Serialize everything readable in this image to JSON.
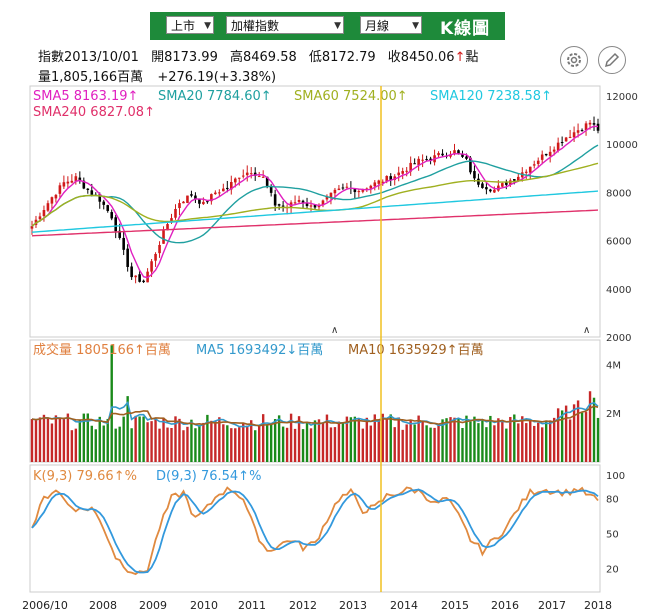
{
  "toolbar": {
    "market_select": "上市",
    "index_select": "加權指數",
    "period_select": "月線",
    "title": "K線圖"
  },
  "quote": {
    "index_date": "指數2013/10/01",
    "open": "開8173.99",
    "high": "高8469.58",
    "low": "低8172.79",
    "close": "收8450.06",
    "close_arrow": "↑",
    "unit": "點",
    "volume": "量1,805,166百萬",
    "change": "+276.19(+3.38%)"
  },
  "icons": {
    "settings": "gear-icon",
    "draw": "pen-icon"
  },
  "colors": {
    "up": "#d11a1a",
    "down": "#000000",
    "vol_up": "#c62828",
    "vol_down": "#1a8a1a",
    "sma5": "#e020c0",
    "sma20": "#20a0a0",
    "sma60": "#a0b020",
    "sma120": "#20c8e0",
    "sma240": "#e0306a",
    "vol": "#e08040",
    "ma5": "#3399cc",
    "ma10": "#a06020",
    "k": "#e08a40",
    "d": "#3399dd",
    "cursor": "#f0c020"
  },
  "chart_data": [
    {
      "type": "candlestick",
      "title": "K線圖",
      "legend": [
        {
          "name": "SMA5",
          "value": "8163.19",
          "arrow": "↑"
        },
        {
          "name": "SMA20",
          "value": "7784.60",
          "arrow": "↑"
        },
        {
          "name": "SMA60",
          "value": "7524.00",
          "arrow": "↑"
        },
        {
          "name": "SMA120",
          "value": "7238.58",
          "arrow": "↑"
        },
        {
          "name": "SMA240",
          "value": "6827.08",
          "arrow": "↑"
        }
      ],
      "ylim": [
        2000,
        12000
      ],
      "yticks": [
        "12000",
        "10000",
        "8000",
        "6000",
        "4000",
        "2000"
      ],
      "start": "2006/10",
      "anchors": [
        [
          0,
          6600
        ],
        [
          2,
          7100
        ],
        [
          5,
          7800
        ],
        [
          8,
          8400
        ],
        [
          11,
          8600
        ],
        [
          14,
          8100
        ],
        [
          17,
          7700
        ],
        [
          20,
          7000
        ],
        [
          23,
          5500
        ],
        [
          25,
          4500
        ],
        [
          28,
          4300
        ],
        [
          31,
          5500
        ],
        [
          34,
          6700
        ],
        [
          37,
          7600
        ],
        [
          40,
          7900
        ],
        [
          43,
          7500
        ],
        [
          46,
          8000
        ],
        [
          49,
          8200
        ],
        [
          52,
          8700
        ],
        [
          55,
          8900
        ],
        [
          58,
          8600
        ],
        [
          61,
          7500
        ],
        [
          64,
          7400
        ],
        [
          67,
          7700
        ],
        [
          70,
          7400
        ],
        [
          73,
          7600
        ],
        [
          76,
          8000
        ],
        [
          79,
          8200
        ],
        [
          82,
          8100
        ],
        [
          85,
          8300
        ],
        [
          88,
          8500
        ],
        [
          91,
          8700
        ],
        [
          94,
          9000
        ],
        [
          97,
          9300
        ],
        [
          100,
          9400
        ],
        [
          103,
          9600
        ],
        [
          106,
          9700
        ],
        [
          109,
          9300
        ],
        [
          111,
          8500
        ],
        [
          113,
          8300
        ],
        [
          116,
          8100
        ],
        [
          119,
          8400
        ],
        [
          122,
          8700
        ],
        [
          125,
          9100
        ],
        [
          128,
          9500
        ],
        [
          131,
          9900
        ],
        [
          134,
          10300
        ],
        [
          137,
          10600
        ],
        [
          140,
          10900
        ],
        [
          142,
          10600
        ]
      ],
      "volume": {
        "legend": [
          {
            "name": "成交量",
            "value": "1805166",
            "arrow": "↑",
            "unit": "百萬"
          },
          {
            "name": "MA5",
            "value": "1693492",
            "arrow": "↓",
            "unit": "百萬"
          },
          {
            "name": "MA10",
            "value": "1635929",
            "arrow": "↑",
            "unit": "百萬"
          }
        ],
        "yticks": [
          "4M",
          "2M"
        ],
        "ylim": [
          0,
          5000000
        ]
      },
      "kd": {
        "legend": [
          {
            "name": "K(9,3)",
            "value": "79.66",
            "arrow": "↑",
            "unit": "%"
          },
          {
            "name": "D(9,3)",
            "value": "76.54",
            "arrow": "↑",
            "unit": "%"
          }
        ],
        "yticks": [
          "100",
          "80",
          "50",
          "20"
        ],
        "ylim": [
          0,
          100
        ],
        "k_anchors": [
          [
            0,
            55
          ],
          [
            3,
            80
          ],
          [
            6,
            88
          ],
          [
            9,
            75
          ],
          [
            12,
            70
          ],
          [
            15,
            72
          ],
          [
            18,
            55
          ],
          [
            21,
            30
          ],
          [
            24,
            20
          ],
          [
            27,
            15
          ],
          [
            29,
            20
          ],
          [
            32,
            55
          ],
          [
            35,
            80
          ],
          [
            38,
            85
          ],
          [
            41,
            62
          ],
          [
            44,
            72
          ],
          [
            47,
            85
          ],
          [
            50,
            88
          ],
          [
            53,
            80
          ],
          [
            56,
            52
          ],
          [
            59,
            35
          ],
          [
            62,
            40
          ],
          [
            65,
            45
          ],
          [
            68,
            38
          ],
          [
            71,
            42
          ],
          [
            74,
            62
          ],
          [
            77,
            80
          ],
          [
            80,
            85
          ],
          [
            83,
            70
          ],
          [
            86,
            72
          ],
          [
            89,
            82
          ],
          [
            92,
            85
          ],
          [
            95,
            88
          ],
          [
            98,
            85
          ],
          [
            101,
            75
          ],
          [
            104,
            80
          ],
          [
            107,
            65
          ],
          [
            110,
            45
          ],
          [
            113,
            35
          ],
          [
            116,
            45
          ],
          [
            119,
            55
          ],
          [
            122,
            72
          ],
          [
            125,
            85
          ],
          [
            128,
            88
          ],
          [
            131,
            86
          ],
          [
            134,
            85
          ],
          [
            137,
            88
          ],
          [
            140,
            82
          ],
          [
            142,
            78
          ]
        ]
      },
      "xticks": [
        "2006/10",
        "2008",
        "2009",
        "2010",
        "2011",
        "2012",
        "2013",
        "2014",
        "2015",
        "2016",
        "2017",
        "2018"
      ],
      "cursor_label": "2013/10/01"
    }
  ]
}
